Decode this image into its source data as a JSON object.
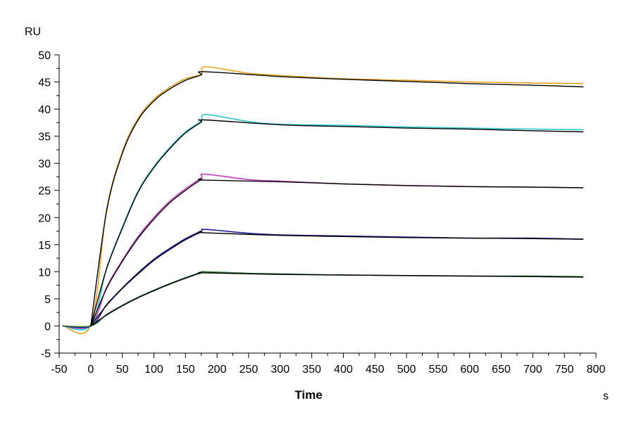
{
  "chart_data": {
    "type": "line",
    "title": "",
    "xlabel": "Time",
    "xunit": "s",
    "ylabel": "RU",
    "xlim": [
      -50,
      800
    ],
    "ylim": [
      -5,
      50
    ],
    "x_ticks": [
      -50,
      0,
      50,
      100,
      150,
      200,
      250,
      300,
      350,
      400,
      450,
      500,
      550,
      600,
      650,
      700,
      750,
      800
    ],
    "y_ticks": [
      -5,
      0,
      5,
      10,
      15,
      20,
      25,
      30,
      35,
      40,
      45,
      50
    ],
    "grid": false,
    "legend": "none",
    "fit_color": "#000000",
    "series": [
      {
        "color": "#e8a020",
        "fit_points": [
          [
            0,
            0
          ],
          [
            25,
            21.1
          ],
          [
            50,
            31.8
          ],
          [
            75,
            38.0
          ],
          [
            100,
            41.5
          ],
          [
            125,
            43.7
          ],
          [
            150,
            45.3
          ],
          [
            175,
            46.3
          ],
          [
            180,
            46.9
          ],
          [
            300,
            46.0
          ],
          [
            400,
            45.5
          ],
          [
            500,
            45.1
          ],
          [
            600,
            44.7
          ],
          [
            700,
            44.4
          ],
          [
            780,
            44.1
          ]
        ],
        "data_points": [
          [
            -45,
            0.1
          ],
          [
            0,
            0.2
          ],
          [
            25,
            21.4
          ],
          [
            50,
            32.1
          ],
          [
            75,
            38.3
          ],
          [
            100,
            41.8
          ],
          [
            125,
            44.0
          ],
          [
            150,
            45.6
          ],
          [
            175,
            46.4
          ],
          [
            182,
            47.8
          ],
          [
            250,
            46.6
          ],
          [
            300,
            46.2
          ],
          [
            400,
            45.6
          ],
          [
            500,
            45.3
          ],
          [
            600,
            45.0
          ],
          [
            700,
            44.8
          ],
          [
            780,
            44.7
          ]
        ]
      },
      {
        "color": "#30c8d0",
        "fit_points": [
          [
            0,
            0
          ],
          [
            25,
            10.5
          ],
          [
            50,
            18.0
          ],
          [
            75,
            24.7
          ],
          [
            100,
            29.2
          ],
          [
            125,
            32.7
          ],
          [
            150,
            35.6
          ],
          [
            175,
            37.6
          ],
          [
            180,
            38.0
          ],
          [
            300,
            37.1
          ],
          [
            400,
            36.8
          ],
          [
            500,
            36.5
          ],
          [
            600,
            36.3
          ],
          [
            700,
            36.0
          ],
          [
            780,
            35.8
          ]
        ],
        "data_points": [
          [
            -45,
            0.0
          ],
          [
            0,
            0.1
          ],
          [
            25,
            10.6
          ],
          [
            50,
            18.2
          ],
          [
            75,
            24.9
          ],
          [
            100,
            29.4
          ],
          [
            125,
            32.9
          ],
          [
            150,
            35.8
          ],
          [
            175,
            37.8
          ],
          [
            182,
            39.0
          ],
          [
            250,
            37.7
          ],
          [
            300,
            37.2
          ],
          [
            400,
            37.0
          ],
          [
            500,
            36.7
          ],
          [
            600,
            36.5
          ],
          [
            700,
            36.3
          ],
          [
            780,
            36.2
          ]
        ]
      },
      {
        "color": "#c040c0",
        "fit_points": [
          [
            0,
            0
          ],
          [
            25,
            6.9
          ],
          [
            50,
            11.9
          ],
          [
            75,
            16.2
          ],
          [
            100,
            19.7
          ],
          [
            125,
            22.7
          ],
          [
            150,
            25.0
          ],
          [
            175,
            27.0
          ],
          [
            180,
            26.9
          ],
          [
            300,
            26.6
          ],
          [
            400,
            26.2
          ],
          [
            500,
            25.9
          ],
          [
            600,
            25.7
          ],
          [
            700,
            25.6
          ],
          [
            780,
            25.5
          ]
        ],
        "data_points": [
          [
            -45,
            0.0
          ],
          [
            0,
            0.1
          ],
          [
            25,
            7.1
          ],
          [
            50,
            12.1
          ],
          [
            75,
            16.5
          ],
          [
            100,
            20.0
          ],
          [
            125,
            23.0
          ],
          [
            150,
            25.3
          ],
          [
            175,
            27.3
          ],
          [
            180,
            28.0
          ],
          [
            250,
            27.0
          ],
          [
            300,
            26.7
          ],
          [
            400,
            26.2
          ],
          [
            500,
            25.9
          ],
          [
            600,
            25.7
          ],
          [
            700,
            25.6
          ],
          [
            780,
            25.5
          ]
        ]
      },
      {
        "color": "#2020a0",
        "fit_points": [
          [
            0,
            0
          ],
          [
            25,
            3.8
          ],
          [
            50,
            6.9
          ],
          [
            75,
            9.6
          ],
          [
            100,
            12.1
          ],
          [
            125,
            14.1
          ],
          [
            150,
            15.9
          ],
          [
            175,
            17.3
          ],
          [
            180,
            17.2
          ],
          [
            300,
            16.7
          ],
          [
            400,
            16.5
          ],
          [
            500,
            16.3
          ],
          [
            600,
            16.2
          ],
          [
            700,
            16.1
          ],
          [
            780,
            16.0
          ]
        ],
        "data_points": [
          [
            -45,
            0.0
          ],
          [
            0,
            0.0
          ],
          [
            25,
            3.9
          ],
          [
            50,
            7.0
          ],
          [
            75,
            9.8
          ],
          [
            100,
            12.3
          ],
          [
            125,
            14.3
          ],
          [
            150,
            16.1
          ],
          [
            175,
            17.5
          ],
          [
            182,
            17.8
          ],
          [
            250,
            17.1
          ],
          [
            300,
            16.8
          ],
          [
            400,
            16.6
          ],
          [
            500,
            16.4
          ],
          [
            600,
            16.2
          ],
          [
            700,
            16.2
          ],
          [
            780,
            16.0
          ]
        ]
      },
      {
        "color": "#207030",
        "fit_points": [
          [
            0,
            0
          ],
          [
            25,
            2.0
          ],
          [
            50,
            3.7
          ],
          [
            75,
            5.2
          ],
          [
            100,
            6.5
          ],
          [
            125,
            7.7
          ],
          [
            150,
            8.8
          ],
          [
            175,
            9.8
          ],
          [
            180,
            9.8
          ],
          [
            300,
            9.5
          ],
          [
            400,
            9.4
          ],
          [
            500,
            9.3
          ],
          [
            600,
            9.2
          ],
          [
            700,
            9.1
          ],
          [
            780,
            9.0
          ]
        ],
        "data_points": [
          [
            -45,
            0.0
          ],
          [
            0,
            0.0
          ],
          [
            25,
            2.1
          ],
          [
            50,
            3.8
          ],
          [
            75,
            5.3
          ],
          [
            100,
            6.6
          ],
          [
            125,
            7.8
          ],
          [
            150,
            8.9
          ],
          [
            175,
            9.9
          ],
          [
            182,
            10.0
          ],
          [
            250,
            9.7
          ],
          [
            300,
            9.6
          ],
          [
            400,
            9.4
          ],
          [
            500,
            9.3
          ],
          [
            600,
            9.2
          ],
          [
            700,
            9.2
          ],
          [
            780,
            9.1
          ]
        ]
      }
    ]
  }
}
